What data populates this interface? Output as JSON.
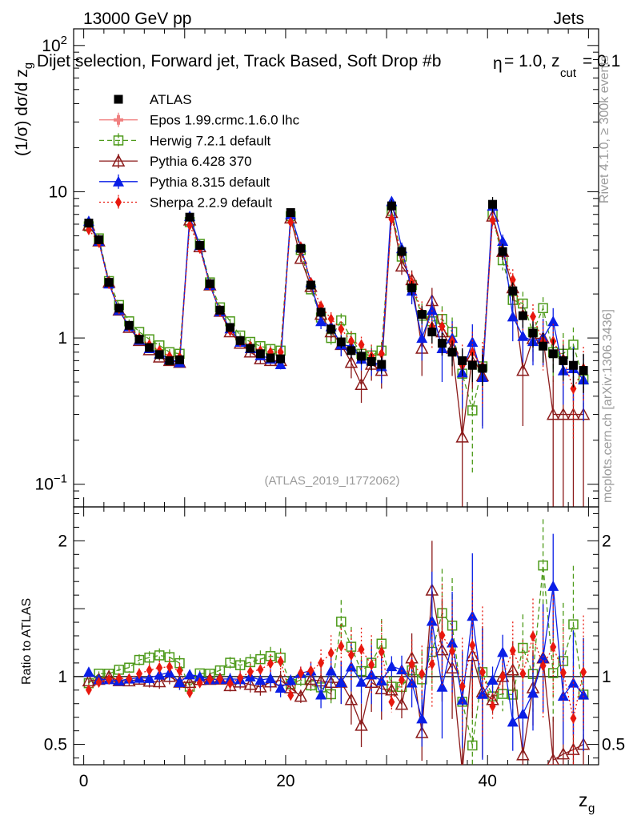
{
  "header": {
    "energy_label": "13000 GeV pp",
    "process_label": "Jets",
    "selection_title": "Dijet selection, Forward jet, Track Based, Soft Drop #b",
    "selection_suffix_eta": "η",
    "selection_suffix_rest": " = 1.0, z",
    "selection_sub_cut": "cut",
    "selection_tail": " = 0.1",
    "analysis_id": "(ATLAS_2019_I1772062)"
  },
  "watermarks": {
    "rivet": "Rivet 4.1.0, ≥ 300k events",
    "mcplots": "mcplots.cern.ch [arXiv:1306.3436]"
  },
  "colors": {
    "data": "#000000",
    "epos": "#f08080",
    "herwig": "#4d9a1a",
    "pythia6": "#8b1a1a",
    "pythia8": "#0a1ee6",
    "sherpa": "#e8180e"
  },
  "chart_data": [
    {
      "type": "scatter",
      "panel": "main",
      "yscale": "log",
      "ylabel": "(1/σ) dσ/d z_g",
      "ylim": [
        0.07,
        130
      ],
      "xlim": [
        -1,
        51
      ],
      "yticks": [
        {
          "value": 0.1,
          "base": "10",
          "exp": "−1"
        },
        {
          "value": 1,
          "label": "1"
        },
        {
          "value": 10,
          "label": "10"
        },
        {
          "value": 100,
          "base": "10",
          "exp": "2"
        }
      ],
      "x": [
        0.5,
        1.5,
        2.5,
        3.5,
        4.5,
        5.5,
        6.5,
        7.5,
        8.5,
        9.5,
        10.5,
        11.5,
        12.5,
        13.5,
        14.5,
        15.5,
        16.5,
        17.5,
        18.5,
        19.5,
        20.5,
        21.5,
        22.5,
        23.5,
        24.5,
        25.5,
        26.5,
        27.5,
        28.5,
        29.5,
        30.5,
        31.5,
        32.5,
        33.5,
        34.5,
        35.5,
        36.5,
        37.5,
        38.5,
        39.5,
        40.5,
        41.5,
        42.5,
        43.5,
        44.5,
        45.5,
        46.5,
        47.5,
        48.5,
        49.5
      ],
      "series": [
        {
          "name": "ATLAS",
          "key": "data",
          "marker": "square-filled",
          "line": "none",
          "values": [
            6.1,
            4.7,
            2.4,
            1.6,
            1.22,
            0.98,
            0.86,
            0.77,
            0.7,
            0.71,
            6.7,
            4.3,
            2.35,
            1.55,
            1.18,
            0.96,
            0.85,
            0.78,
            0.73,
            0.72,
            7.2,
            4.1,
            2.3,
            1.5,
            1.15,
            0.94,
            0.82,
            0.75,
            0.69,
            0.66,
            8.0,
            3.9,
            2.2,
            1.45,
            1.1,
            0.92,
            0.8,
            0.7,
            0.65,
            0.62,
            8.2,
            3.9,
            2.1,
            1.42,
            1.08,
            0.88,
            0.78,
            0.7,
            0.65,
            0.6
          ],
          "errors": [
            0.3,
            0.2,
            0.1,
            0.07,
            0.05,
            0.04,
            0.04,
            0.04,
            0.04,
            0.04,
            0.4,
            0.2,
            0.1,
            0.07,
            0.06,
            0.05,
            0.05,
            0.05,
            0.05,
            0.05,
            0.5,
            0.3,
            0.15,
            0.12,
            0.1,
            0.09,
            0.09,
            0.09,
            0.09,
            0.09,
            0.8,
            0.4,
            0.25,
            0.2,
            0.18,
            0.16,
            0.16,
            0.15,
            0.15,
            0.15,
            1.0,
            0.5,
            0.3,
            0.25,
            0.22,
            0.2,
            0.2,
            0.19,
            0.19,
            0.18
          ]
        },
        {
          "name": "Epos 1.99.crmc.1.6.0 lhc",
          "key": "epos",
          "marker": "plus-filled",
          "line": "solid",
          "values": []
        },
        {
          "name": "Herwig 7.2.1 default",
          "key": "herwig",
          "marker": "square-open",
          "line": "dashed",
          "values": [
            5.8,
            4.8,
            2.45,
            1.68,
            1.3,
            1.1,
            0.98,
            0.89,
            0.8,
            0.78,
            6.2,
            4.4,
            2.4,
            1.62,
            1.3,
            1.04,
            0.94,
            0.88,
            0.84,
            0.82,
            6.8,
            4.0,
            2.15,
            1.38,
            1.0,
            1.32,
            1.0,
            0.78,
            0.76,
            0.82,
            7.4,
            3.6,
            2.3,
            1.42,
            1.3,
            1.35,
            1.1,
            0.57,
            0.32,
            0.64,
            7.0,
            3.4,
            1.82,
            1.72,
            1.1,
            1.6,
            0.8,
            0.78,
            0.9,
            0.52
          ],
          "errors": [
            0.1,
            0.08,
            0.05,
            0.04,
            0.04,
            0.04,
            0.04,
            0.04,
            0.04,
            0.04,
            0.2,
            0.1,
            0.06,
            0.05,
            0.05,
            0.05,
            0.05,
            0.05,
            0.05,
            0.05,
            0.3,
            0.2,
            0.12,
            0.12,
            0.1,
            0.15,
            0.12,
            0.12,
            0.12,
            0.12,
            0.6,
            0.4,
            0.3,
            0.3,
            0.3,
            0.3,
            0.28,
            0.25,
            0.2,
            0.2,
            0.8,
            0.5,
            0.4,
            0.35,
            0.3,
            0.3,
            0.3,
            0.3,
            0.28,
            0.25
          ]
        },
        {
          "name": "Pythia 6.428 370",
          "key": "pythia6",
          "marker": "triangle-open",
          "line": "solid",
          "values": [
            5.9,
            4.6,
            2.4,
            1.55,
            1.18,
            0.96,
            0.83,
            0.74,
            0.7,
            0.68,
            6.4,
            4.2,
            2.3,
            1.52,
            1.1,
            0.92,
            0.8,
            0.72,
            0.7,
            0.7,
            6.6,
            3.5,
            2.25,
            1.45,
            1.1,
            0.9,
            0.68,
            0.48,
            0.66,
            0.6,
            7.2,
            3.1,
            2.5,
            0.85,
            1.8,
            1.1,
            0.85,
            0.21,
            0.75,
            0.55,
            6.8,
            3.9,
            2.2,
            0.6,
            0.99,
            1.0,
            0.3,
            0.3,
            0.3,
            0.3
          ],
          "errors": [
            0.1,
            0.08,
            0.05,
            0.04,
            0.04,
            0.04,
            0.04,
            0.04,
            0.04,
            0.04,
            0.2,
            0.1,
            0.06,
            0.05,
            0.05,
            0.05,
            0.05,
            0.05,
            0.05,
            0.05,
            0.3,
            0.2,
            0.15,
            0.15,
            0.15,
            0.15,
            0.15,
            0.12,
            0.15,
            0.15,
            0.6,
            0.4,
            0.4,
            0.3,
            0.4,
            0.35,
            0.3,
            0.2,
            0.3,
            0.3,
            0.8,
            0.5,
            0.45,
            0.35,
            0.3,
            0.35,
            0.25,
            0.25,
            0.25,
            0.25
          ]
        },
        {
          "name": "Pythia 8.315 default",
          "key": "pythia8",
          "marker": "triangle-filled",
          "line": "solid",
          "values": [
            6.3,
            4.6,
            2.35,
            1.55,
            1.2,
            0.97,
            0.85,
            0.78,
            0.72,
            0.68,
            6.8,
            4.3,
            2.3,
            1.52,
            1.16,
            0.94,
            0.85,
            0.76,
            0.72,
            0.66,
            7.0,
            4.2,
            2.4,
            1.3,
            1.2,
            0.9,
            0.88,
            0.72,
            0.7,
            0.64,
            8.6,
            4.1,
            2.1,
            1.0,
            1.55,
            0.85,
            1.0,
            0.58,
            0.94,
            0.54,
            8.0,
            4.6,
            1.4,
            1.03,
            0.95,
            1.0,
            1.3,
            0.6,
            0.62,
            0.52
          ],
          "errors": [
            0.1,
            0.08,
            0.05,
            0.04,
            0.04,
            0.04,
            0.04,
            0.04,
            0.04,
            0.04,
            0.2,
            0.1,
            0.06,
            0.05,
            0.05,
            0.05,
            0.05,
            0.05,
            0.05,
            0.05,
            0.3,
            0.2,
            0.15,
            0.15,
            0.15,
            0.15,
            0.15,
            0.12,
            0.15,
            0.15,
            0.6,
            0.4,
            0.4,
            0.3,
            0.4,
            0.35,
            0.3,
            0.25,
            0.3,
            0.3,
            0.8,
            0.5,
            0.45,
            0.35,
            0.3,
            0.35,
            0.3,
            0.25,
            0.25,
            0.25
          ]
        },
        {
          "name": "Sherpa 2.2.9 default",
          "key": "sherpa",
          "marker": "diamond-filled",
          "line": "dotted",
          "values": [
            5.5,
            4.5,
            2.35,
            1.58,
            1.2,
            1.0,
            0.9,
            0.82,
            0.75,
            0.74,
            5.9,
            4.1,
            2.3,
            1.52,
            1.12,
            0.95,
            0.88,
            0.82,
            0.8,
            0.8,
            6.2,
            4.2,
            2.4,
            1.65,
            1.35,
            1.15,
            0.95,
            0.9,
            0.75,
            0.78,
            6.5,
            3.8,
            2.4,
            1.48,
            1.2,
            1.2,
            0.95,
            0.65,
            0.8,
            0.64,
            6.4,
            3.9,
            2.5,
            1.45,
            1.4,
            0.95,
            0.95,
            0.72,
            0.45,
            0.62
          ],
          "errors": [
            0.1,
            0.08,
            0.05,
            0.04,
            0.04,
            0.04,
            0.04,
            0.04,
            0.04,
            0.04,
            0.2,
            0.1,
            0.06,
            0.05,
            0.05,
            0.05,
            0.05,
            0.05,
            0.05,
            0.05,
            0.3,
            0.2,
            0.15,
            0.15,
            0.15,
            0.15,
            0.15,
            0.12,
            0.15,
            0.15,
            0.6,
            0.4,
            0.4,
            0.3,
            0.35,
            0.35,
            0.3,
            0.25,
            0.3,
            0.3,
            0.8,
            0.5,
            0.45,
            0.35,
            0.3,
            0.35,
            0.3,
            0.25,
            0.25,
            0.25
          ]
        }
      ]
    },
    {
      "type": "scatter",
      "panel": "ratio",
      "ylabel": "Ratio to ATLAS",
      "xlabel": "z_g",
      "ylim": [
        0.35,
        2.25
      ],
      "xlim": [
        -1,
        51
      ],
      "yticks": [
        0.5,
        1,
        2
      ],
      "xticks": [
        0,
        20,
        40
      ],
      "reference": 1,
      "note": "ratio values = MC / ATLAS computed from main-panel series"
    }
  ]
}
